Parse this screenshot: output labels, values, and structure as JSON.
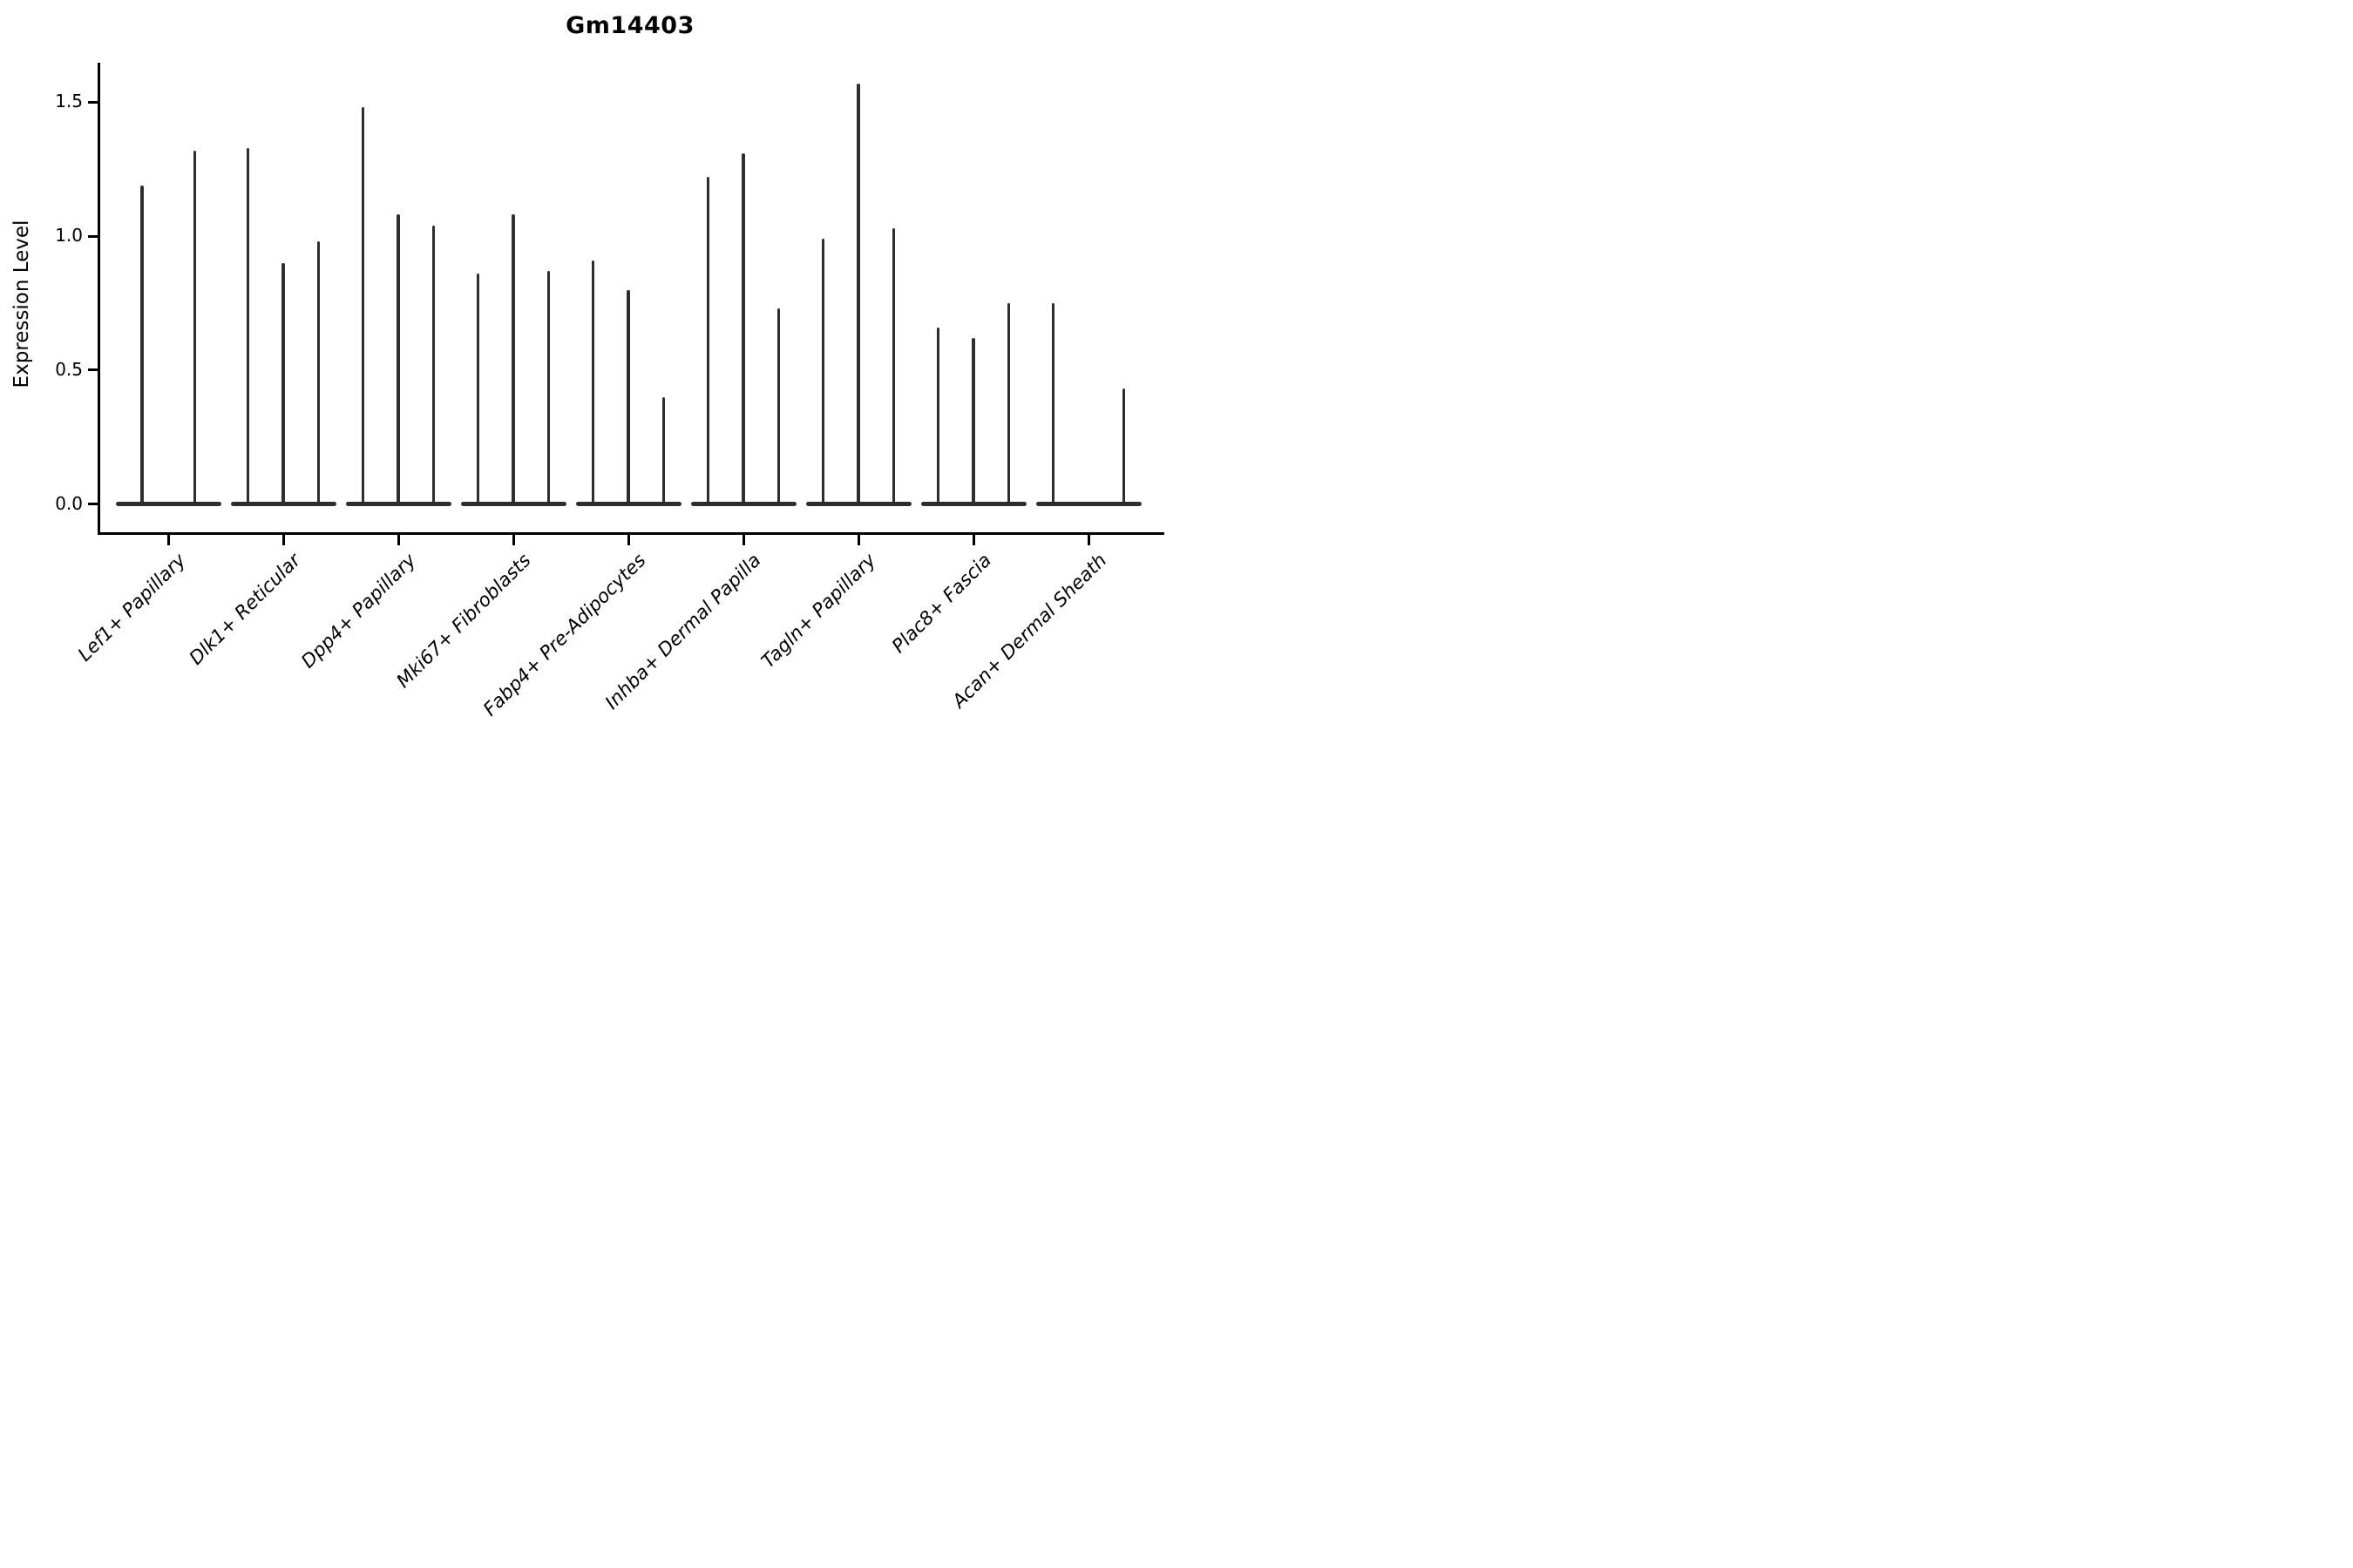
{
  "title": "Gm14403",
  "y_axis": {
    "label": "Expression Level",
    "ticks": [
      {
        "label": "0.0",
        "value": 0.0
      },
      {
        "label": "0.5",
        "value": 0.5
      },
      {
        "label": "1.0",
        "value": 1.0
      },
      {
        "label": "1.5",
        "value": 1.5
      }
    ]
  },
  "x_axis": {
    "categories": [
      "Lef1+ Papillary",
      "Dlk1+ Reticular",
      "Dpp4+ Papillary",
      "Mki67+ Fibroblasts",
      "Fabp4+ Pre-Adipocytes",
      "Inhba+ Dermal Papilla",
      "Tagln+ Papillary",
      "Plac8+ Fascia",
      "Acan+ Dermal Sheath"
    ]
  },
  "style": {
    "violin_color": "#2e2e2e",
    "axis_color": "#000000",
    "text_color": "#000000",
    "background": "#ffffff"
  },
  "chart_data": {
    "type": "violin",
    "title": "Gm14403",
    "xlabel": "",
    "ylabel": "Expression Level",
    "ylim": [
      -0.11,
      1.64
    ],
    "y_ticks": [
      0.0,
      0.5,
      1.0,
      1.5
    ],
    "grid": false,
    "legend": false,
    "note": "Sparse-expression violins: each violin is a wide flat base at 0 with a thin vertical density spike reaching the listed max expression value. Groups hold 2-3 violins dodged within the category slot.",
    "categories": [
      "Lef1+ Papillary",
      "Dlk1+ Reticular",
      "Dpp4+ Papillary",
      "Mki67+ Fibroblasts",
      "Fabp4+ Pre-Adipocytes",
      "Inhba+ Dermal Papilla",
      "Tagln+ Papillary",
      "Plac8+ Fascia",
      "Acan+ Dermal Sheath"
    ],
    "groups": [
      {
        "category": "Lef1+ Papillary",
        "n_slots": 2,
        "violins": [
          {
            "slot": 0,
            "max": 1.19
          },
          {
            "slot": 1,
            "max": 1.32
          }
        ]
      },
      {
        "category": "Dlk1+ Reticular",
        "n_slots": 3,
        "violins": [
          {
            "slot": 0,
            "max": 1.33
          },
          {
            "slot": 1,
            "max": 0.9
          },
          {
            "slot": 2,
            "max": 0.98
          }
        ]
      },
      {
        "category": "Dpp4+ Papillary",
        "n_slots": 3,
        "violins": [
          {
            "slot": 0,
            "max": 1.48
          },
          {
            "slot": 1,
            "max": 1.08
          },
          {
            "slot": 2,
            "max": 1.04
          }
        ]
      },
      {
        "category": "Mki67+ Fibroblasts",
        "n_slots": 3,
        "violins": [
          {
            "slot": 0,
            "max": 0.86
          },
          {
            "slot": 1,
            "max": 1.08
          },
          {
            "slot": 2,
            "max": 0.87
          }
        ]
      },
      {
        "category": "Fabp4+ Pre-Adipocytes",
        "n_slots": 3,
        "violins": [
          {
            "slot": 0,
            "max": 0.91
          },
          {
            "slot": 1,
            "max": 0.8
          },
          {
            "slot": 2,
            "max": 0.4
          }
        ]
      },
      {
        "category": "Inhba+ Dermal Papilla",
        "n_slots": 3,
        "violins": [
          {
            "slot": 0,
            "max": 1.22
          },
          {
            "slot": 1,
            "max": 1.31
          },
          {
            "slot": 2,
            "max": 0.73
          }
        ]
      },
      {
        "category": "Tagln+ Papillary",
        "n_slots": 3,
        "violins": [
          {
            "slot": 0,
            "max": 0.99
          },
          {
            "slot": 1,
            "max": 1.57
          },
          {
            "slot": 2,
            "max": 1.03
          }
        ]
      },
      {
        "category": "Plac8+ Fascia",
        "n_slots": 3,
        "violins": [
          {
            "slot": 0,
            "max": 0.66
          },
          {
            "slot": 1,
            "max": 0.62
          },
          {
            "slot": 2,
            "max": 0.75
          }
        ]
      },
      {
        "category": "Acan+ Dermal Sheath",
        "n_slots": 3,
        "violins": [
          {
            "slot": 0,
            "max": 0.75
          },
          {
            "slot": 2,
            "max": 0.43
          }
        ]
      }
    ]
  }
}
